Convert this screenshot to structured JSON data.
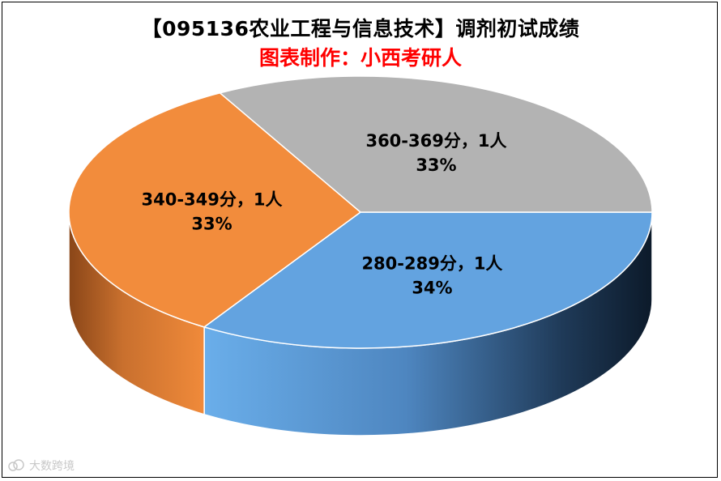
{
  "chart_data": {
    "type": "pie",
    "title": "【095136农业工程与信息技术】调剂初试成绩",
    "subtitle": "图表制作：小西考研人",
    "slices": [
      {
        "label": "280-289分",
        "count_text": "1人",
        "percent_text": "34%",
        "value": 34,
        "color": "#63a3e0"
      },
      {
        "label": "340-349分",
        "count_text": "1人",
        "percent_text": "33%",
        "value": 33,
        "color": "#f28c3c"
      },
      {
        "label": "360-369分",
        "count_text": "1人",
        "percent_text": "33%",
        "value": 33,
        "color": "#b3b3b3"
      }
    ],
    "legend": "none"
  },
  "watermark": {
    "text": "大数跨境",
    "logo_icon": "cloud-logo-icon"
  }
}
